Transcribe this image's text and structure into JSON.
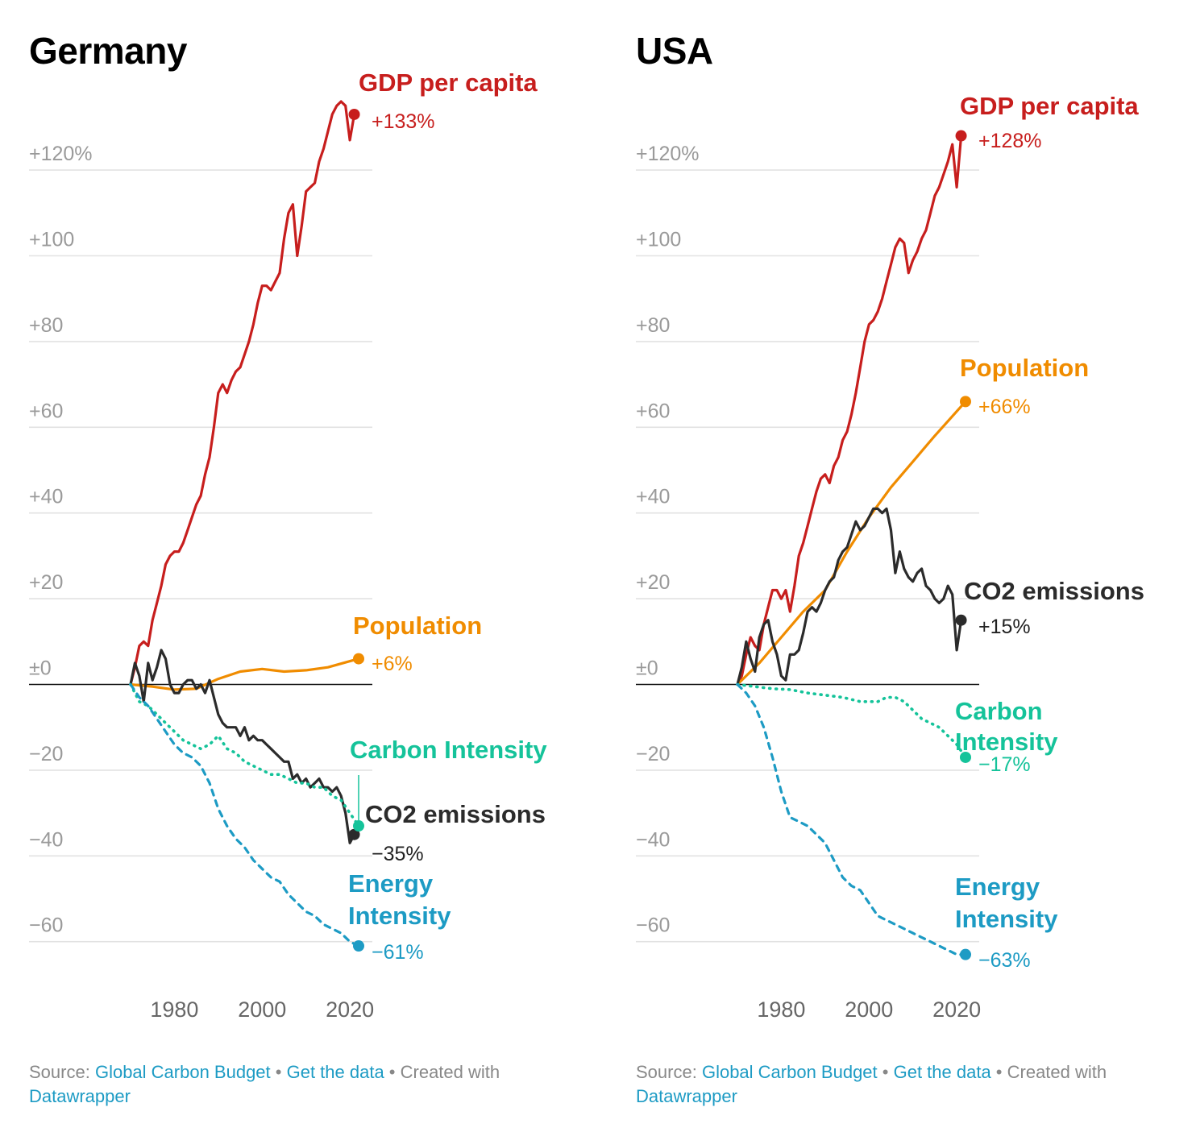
{
  "chart_data": [
    {
      "type": "line",
      "title": "Germany",
      "xlabel": "",
      "ylabel": "",
      "ylim": [
        -70,
        135
      ],
      "xlim": [
        1970,
        2022
      ],
      "y_ticks": [
        {
          "value": 120,
          "label": "+120%"
        },
        {
          "value": 100,
          "label": "+100"
        },
        {
          "value": 80,
          "label": "+80"
        },
        {
          "value": 60,
          "label": "+60"
        },
        {
          "value": 40,
          "label": "+40"
        },
        {
          "value": 20,
          "label": "+20"
        },
        {
          "value": 0,
          "label": "±0"
        },
        {
          "value": -20,
          "label": "−20"
        },
        {
          "value": -40,
          "label": "−40"
        },
        {
          "value": -60,
          "label": "−60"
        }
      ],
      "x_ticks": [
        {
          "value": 1980,
          "label": "1980"
        },
        {
          "value": 2000,
          "label": "2000"
        },
        {
          "value": 2020,
          "label": "2020"
        }
      ],
      "grid": true,
      "legend": "direct-labels",
      "series": [
        {
          "name": "GDP per capita",
          "end_label": "+133%",
          "color": "#c71e1d",
          "style": "solid",
          "x": [
            1970,
            1971,
            1972,
            1973,
            1974,
            1975,
            1976,
            1977,
            1978,
            1979,
            1980,
            1981,
            1982,
            1983,
            1984,
            1985,
            1986,
            1987,
            1988,
            1989,
            1990,
            1991,
            1992,
            1993,
            1994,
            1995,
            1996,
            1997,
            1998,
            1999,
            2000,
            2001,
            2002,
            2003,
            2004,
            2005,
            2006,
            2007,
            2008,
            2009,
            2010,
            2011,
            2012,
            2013,
            2014,
            2015,
            2016,
            2017,
            2018,
            2019,
            2020,
            2021
          ],
          "y": [
            0,
            4,
            9,
            10,
            9,
            15,
            19,
            23,
            28,
            30,
            31,
            31,
            33,
            36,
            39,
            42,
            44,
            49,
            53,
            60,
            68,
            70,
            68,
            71,
            73,
            74,
            77,
            80,
            84,
            89,
            93,
            93,
            92,
            94,
            96,
            104,
            110,
            112,
            100,
            107,
            115,
            116,
            117,
            122,
            125,
            129,
            133,
            135,
            136,
            135,
            127,
            133
          ]
        },
        {
          "name": "Population",
          "end_label": "+6%",
          "color": "#f08c00",
          "style": "solid",
          "x": [
            1970,
            1975,
            1980,
            1985,
            1990,
            1995,
            2000,
            2005,
            2010,
            2015,
            2022
          ],
          "y": [
            0,
            -0.5,
            -1.2,
            -1,
            1.3,
            3,
            3.6,
            3,
            3.3,
            4,
            6
          ]
        },
        {
          "name": "CO2 emissions",
          "end_label": "−35%",
          "color": "#2b2b2b",
          "style": "solid",
          "x": [
            1970,
            1971,
            1972,
            1973,
            1974,
            1975,
            1976,
            1977,
            1978,
            1979,
            1980,
            1981,
            1982,
            1983,
            1984,
            1985,
            1986,
            1987,
            1988,
            1989,
            1990,
            1991,
            1992,
            1993,
            1994,
            1995,
            1996,
            1997,
            1998,
            1999,
            2000,
            2001,
            2002,
            2003,
            2004,
            2005,
            2006,
            2007,
            2008,
            2009,
            2010,
            2011,
            2012,
            2013,
            2014,
            2015,
            2016,
            2017,
            2018,
            2019,
            2020,
            2021
          ],
          "y": [
            0,
            5,
            2,
            -4,
            5,
            1,
            4,
            8,
            6,
            0,
            -2,
            -2,
            0,
            1,
            1,
            -1,
            0,
            -2,
            1,
            -3,
            -7,
            -9,
            -10,
            -10,
            -10,
            -12,
            -10,
            -13,
            -12,
            -13,
            -13,
            -14,
            -15,
            -16,
            -17,
            -18,
            -18,
            -22,
            -21,
            -23,
            -22,
            -24,
            -23,
            -22,
            -24,
            -24,
            -25,
            -24,
            -26,
            -30,
            -37,
            -35
          ]
        },
        {
          "name": "Carbon Intensity",
          "end_label": "",
          "color": "#15c39a",
          "style": "dotted",
          "x": [
            1970,
            1972,
            1974,
            1976,
            1978,
            1980,
            1982,
            1984,
            1986,
            1988,
            1990,
            1992,
            1994,
            1996,
            1998,
            2000,
            2002,
            2004,
            2006,
            2008,
            2010,
            2012,
            2014,
            2016,
            2018,
            2020,
            2022
          ],
          "y": [
            0,
            -4,
            -5,
            -7,
            -9,
            -11,
            -13,
            -14,
            -15,
            -14,
            -12,
            -15,
            -16,
            -18,
            -19,
            -20,
            -21,
            -21,
            -22,
            -23,
            -23,
            -24,
            -24,
            -26,
            -27,
            -30,
            -33
          ]
        },
        {
          "name": "Energy Intensity",
          "end_label": "−61%",
          "color": "#1d9bc4",
          "style": "dashed",
          "x": [
            1970,
            1972,
            1974,
            1976,
            1978,
            1980,
            1982,
            1984,
            1986,
            1988,
            1990,
            1992,
            1994,
            1996,
            1998,
            2000,
            2002,
            2004,
            2006,
            2008,
            2010,
            2012,
            2014,
            2016,
            2018,
            2020,
            2022
          ],
          "y": [
            0,
            -3,
            -5,
            -8,
            -11,
            -14,
            -16,
            -17,
            -19,
            -23,
            -29,
            -33,
            -36,
            -38,
            -41,
            -43,
            -45,
            -46,
            -49,
            -51,
            -53,
            -54,
            -56,
            -57,
            -58,
            -60,
            -61
          ]
        }
      ]
    },
    {
      "type": "line",
      "title": "USA",
      "xlabel": "",
      "ylabel": "",
      "ylim": [
        -70,
        135
      ],
      "xlim": [
        1970,
        2022
      ],
      "y_ticks": [
        {
          "value": 120,
          "label": "+120%"
        },
        {
          "value": 100,
          "label": "+100"
        },
        {
          "value": 80,
          "label": "+80"
        },
        {
          "value": 60,
          "label": "+60"
        },
        {
          "value": 40,
          "label": "+40"
        },
        {
          "value": 20,
          "label": "+20"
        },
        {
          "value": 0,
          "label": "±0"
        },
        {
          "value": -20,
          "label": "−20"
        },
        {
          "value": -40,
          "label": "−40"
        },
        {
          "value": -60,
          "label": "−60"
        }
      ],
      "x_ticks": [
        {
          "value": 1980,
          "label": "1980"
        },
        {
          "value": 2000,
          "label": "2000"
        },
        {
          "value": 2020,
          "label": "2020"
        }
      ],
      "grid": true,
      "legend": "direct-labels",
      "series": [
        {
          "name": "GDP per capita",
          "end_label": "+128%",
          "color": "#c71e1d",
          "style": "solid",
          "x": [
            1970,
            1971,
            1972,
            1973,
            1974,
            1975,
            1976,
            1977,
            1978,
            1979,
            1980,
            1981,
            1982,
            1983,
            1984,
            1985,
            1986,
            1987,
            1988,
            1989,
            1990,
            1991,
            1992,
            1993,
            1994,
            1995,
            1996,
            1997,
            1998,
            1999,
            2000,
            2001,
            2002,
            2003,
            2004,
            2005,
            2006,
            2007,
            2008,
            2009,
            2010,
            2011,
            2012,
            2013,
            2014,
            2015,
            2016,
            2017,
            2018,
            2019,
            2020,
            2021
          ],
          "y": [
            0,
            2,
            7,
            11,
            9,
            8,
            14,
            18,
            22,
            22,
            20,
            22,
            17,
            23,
            30,
            33,
            37,
            41,
            45,
            48,
            49,
            47,
            51,
            53,
            57,
            59,
            63,
            68,
            74,
            80,
            84,
            85,
            87,
            90,
            94,
            98,
            102,
            104,
            103,
            96,
            99,
            101,
            104,
            106,
            110,
            114,
            116,
            119,
            122,
            126,
            116,
            128
          ]
        },
        {
          "name": "Population",
          "end_label": "+66%",
          "color": "#f08c00",
          "style": "solid",
          "x": [
            1970,
            1975,
            1980,
            1985,
            1990,
            1995,
            2000,
            2005,
            2010,
            2015,
            2022
          ],
          "y": [
            0,
            5,
            11,
            17,
            22,
            31,
            39,
            46,
            52,
            58,
            66
          ]
        },
        {
          "name": "CO2 emissions",
          "end_label": "+15%",
          "color": "#2b2b2b",
          "style": "solid",
          "x": [
            1970,
            1971,
            1972,
            1973,
            1974,
            1975,
            1976,
            1977,
            1978,
            1979,
            1980,
            1981,
            1982,
            1983,
            1984,
            1985,
            1986,
            1987,
            1988,
            1989,
            1990,
            1991,
            1992,
            1993,
            1994,
            1995,
            1996,
            1997,
            1998,
            1999,
            2000,
            2001,
            2002,
            2003,
            2004,
            2005,
            2006,
            2007,
            2008,
            2009,
            2010,
            2011,
            2012,
            2013,
            2014,
            2015,
            2016,
            2017,
            2018,
            2019,
            2020,
            2021
          ],
          "y": [
            0,
            4,
            10,
            6,
            3,
            11,
            14,
            15,
            10,
            7,
            2,
            1,
            7,
            7,
            8,
            12,
            17,
            18,
            17,
            19,
            22,
            24,
            25,
            29,
            31,
            32,
            35,
            38,
            36,
            37,
            39,
            41,
            41,
            40,
            41,
            36,
            26,
            31,
            27,
            25,
            24,
            26,
            27,
            23,
            22,
            20,
            19,
            20,
            23,
            21,
            8,
            15
          ]
        },
        {
          "name": "Carbon Intensity",
          "end_label": "−17%",
          "color": "#15c39a",
          "style": "dotted",
          "x": [
            1970,
            1974,
            1978,
            1982,
            1986,
            1990,
            1994,
            1998,
            2002,
            2004,
            2006,
            2008,
            2010,
            2012,
            2014,
            2016,
            2018,
            2020,
            2022
          ],
          "y": [
            0,
            -0.5,
            -1,
            -1.2,
            -2,
            -2.5,
            -3,
            -4,
            -4,
            -3,
            -3,
            -4,
            -6,
            -8,
            -9,
            -10,
            -12,
            -14,
            -17
          ]
        },
        {
          "name": "Energy Intensity",
          "end_label": "−63%",
          "color": "#1d9bc4",
          "style": "dashed",
          "x": [
            1970,
            1972,
            1974,
            1976,
            1978,
            1980,
            1982,
            1984,
            1986,
            1988,
            1990,
            1992,
            1994,
            1996,
            1998,
            2000,
            2002,
            2004,
            2006,
            2008,
            2010,
            2012,
            2014,
            2016,
            2018,
            2020,
            2022
          ],
          "y": [
            0,
            -2,
            -5,
            -10,
            -17,
            -25,
            -31,
            -32,
            -33,
            -35,
            -37,
            -41,
            -45,
            -47,
            -48,
            -51,
            -54,
            -55,
            -56,
            -57,
            -58,
            -59,
            -60,
            -61,
            -62,
            -63,
            -63
          ]
        }
      ]
    }
  ],
  "footer": {
    "source_label": "Source:",
    "source_link": "Global Carbon Budget",
    "sep1": " • ",
    "data_link": "Get the data",
    "sep2": " • Created with",
    "tool_link": "Datawrapper"
  }
}
